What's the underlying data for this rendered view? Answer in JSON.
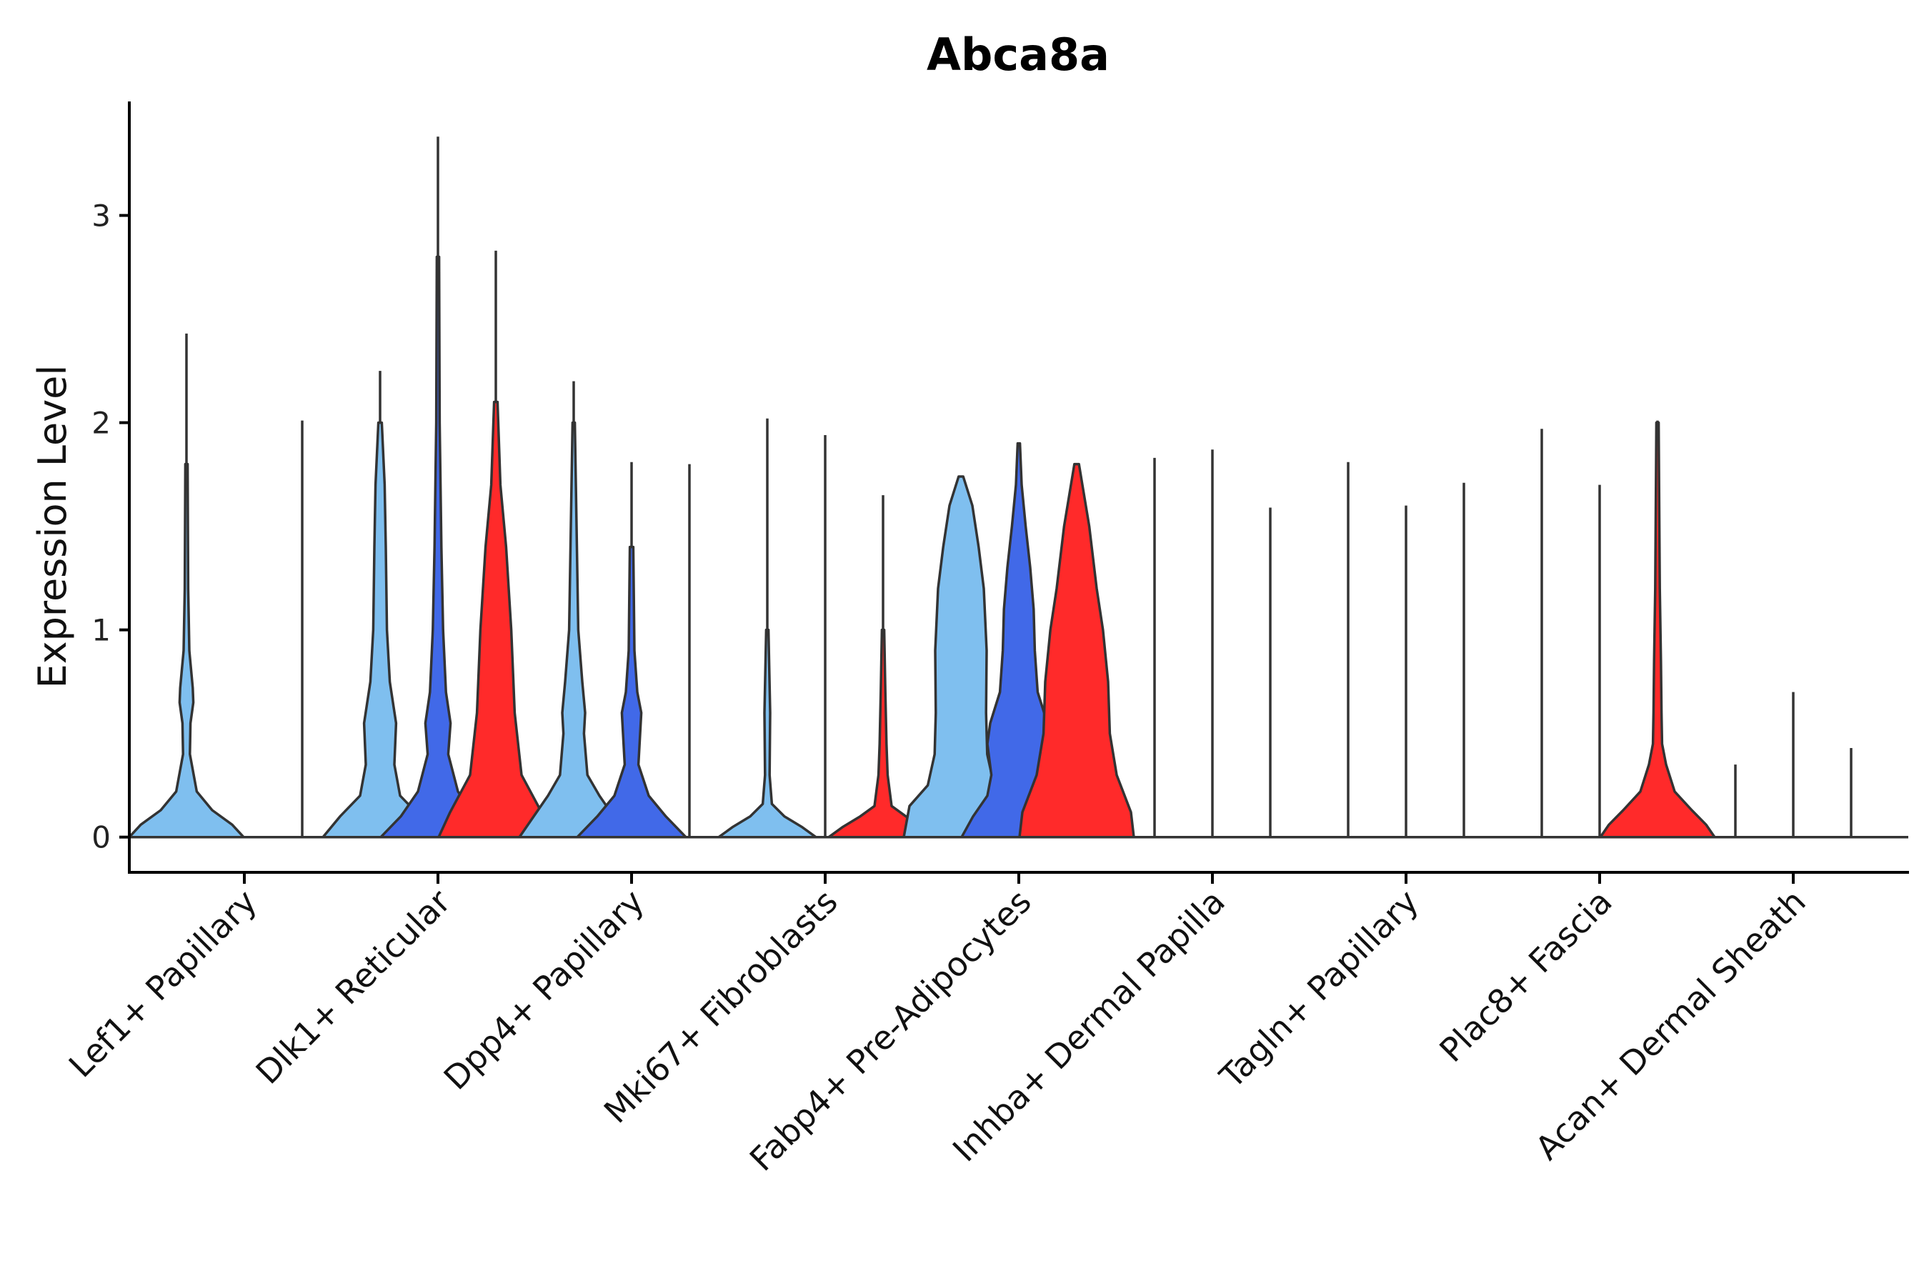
{
  "chart_data": {
    "type": "violin",
    "title": "Abca8a",
    "xlabel": "",
    "ylabel": "Expression Level",
    "ylim": [
      -0.17,
      3.55
    ],
    "yticks": [
      0,
      1,
      2,
      3
    ],
    "grid": false,
    "legend": "none",
    "categories": [
      "Lef1+ Papillary",
      "Dlk1+ Reticular",
      "Dpp4+ Papillary",
      "Mki67+ Fibroblasts",
      "Fabp4+ Pre-Adipocytes",
      "Inhba+ Dermal Papilla",
      "Tagln+ Papillary",
      "Plac8+ Fascia",
      "Acan+ Dermal Sheath"
    ],
    "groups": [
      "group1",
      "group2",
      "group3"
    ],
    "colors": {
      "group1": "#7FBFEF",
      "group2": "#4169E8",
      "group3": "#FF2A2A"
    },
    "series_max": [
      [
        2.43,
        0.0,
        2.01
      ],
      [
        2.25,
        3.38,
        2.83
      ],
      [
        2.2,
        1.81,
        1.8
      ],
      [
        2.02,
        1.94,
        1.65
      ],
      [
        1.74,
        1.9,
        1.8
      ],
      [
        1.83,
        1.87,
        1.59
      ],
      [
        1.81,
        1.6,
        1.71
      ],
      [
        1.97,
        1.7,
        2.01
      ],
      [
        0.35,
        0.7,
        0.43
      ]
    ],
    "series_filled": [
      [
        true,
        false,
        false
      ],
      [
        true,
        true,
        true
      ],
      [
        true,
        true,
        false
      ],
      [
        true,
        false,
        true
      ],
      [
        true,
        true,
        true
      ],
      [
        false,
        false,
        false
      ],
      [
        false,
        false,
        false
      ],
      [
        false,
        false,
        true
      ],
      [
        false,
        false,
        false
      ]
    ]
  }
}
